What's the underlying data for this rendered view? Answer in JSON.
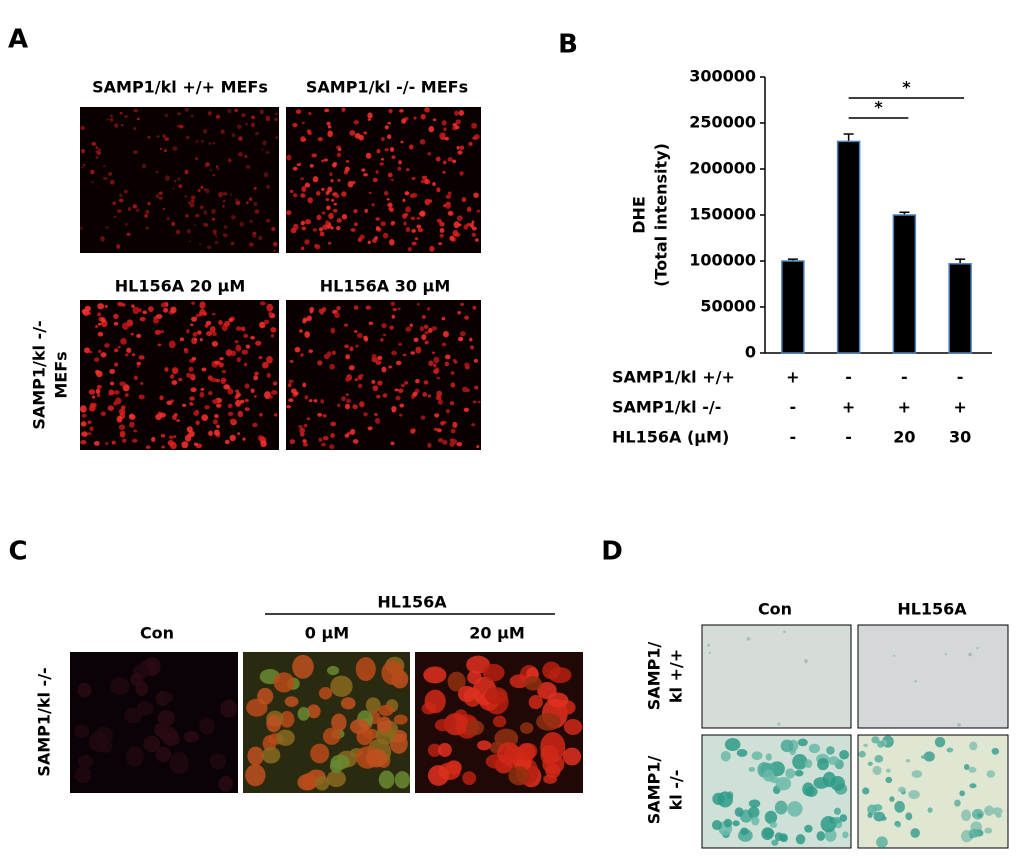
{
  "panel_a": {
    "label": "A",
    "column_headers": [
      "SAMP1/kl +/+ MEFs",
      "SAMP1/kl -/- MEFs"
    ],
    "row2_headers": [
      "HL156A 20 μM",
      "HL156A 30 μM"
    ],
    "row_label": [
      "SAMP1/kl -/-",
      "MEFs"
    ]
  },
  "chart_data": {
    "label": "B",
    "type": "bar",
    "y_label": [
      "DHE",
      "(Total intensity)"
    ],
    "values": [
      100000,
      230000,
      150000,
      97000
    ],
    "errors": [
      2000,
      8000,
      3000,
      5000
    ],
    "color": "#000000",
    "edge_color": "#4f81bd",
    "ylim": [
      0,
      300000
    ],
    "yticks": [
      0,
      50000,
      100000,
      150000,
      200000,
      250000,
      300000
    ],
    "conditions": [
      {
        "name": "SAMP1/kl +/+",
        "cells": [
          "+",
          "-",
          "-",
          "-"
        ]
      },
      {
        "name": "SAMP1/kl -/-",
        "cells": [
          "-",
          "+",
          "+",
          "+"
        ]
      },
      {
        "name": "HL156A (μM)",
        "cells": [
          "-",
          "-",
          "20",
          "30"
        ]
      }
    ],
    "significance": [
      {
        "from": 1,
        "to": 2,
        "label": "*"
      },
      {
        "from": 1,
        "to": 3,
        "label": "*"
      }
    ]
  },
  "panel_c": {
    "label": "C",
    "group": "HL156A",
    "columns": [
      "Con",
      "0 μM",
      "20 μM"
    ],
    "row_label": "SAMP1/kl -/-"
  },
  "panel_d": {
    "label": "D",
    "columns": [
      "Con",
      "HL156A"
    ],
    "rows": [
      [
        "SAMP1/",
        "kl +/+"
      ],
      [
        "SAMP1/",
        "kl -/-"
      ]
    ]
  }
}
